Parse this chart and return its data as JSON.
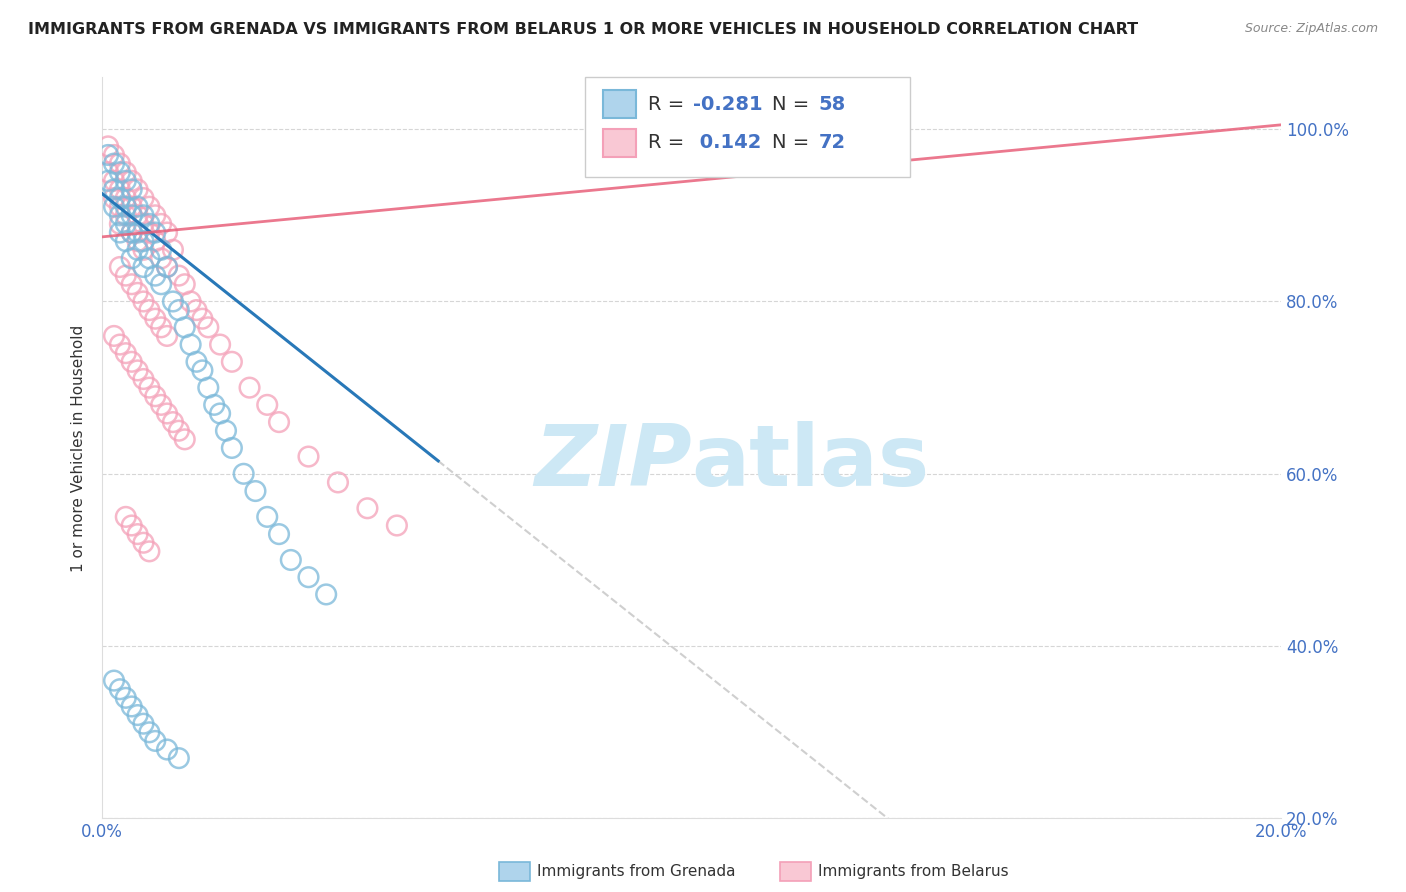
{
  "title": "IMMIGRANTS FROM GRENADA VS IMMIGRANTS FROM BELARUS 1 OR MORE VEHICLES IN HOUSEHOLD CORRELATION CHART",
  "source": "Source: ZipAtlas.com",
  "ylabel": "1 or more Vehicles in Household",
  "xlim": [
    0.0,
    0.2
  ],
  "ylim": [
    0.2,
    1.06
  ],
  "xtick_positions": [
    0.0,
    0.02,
    0.04,
    0.06,
    0.08,
    0.1,
    0.12,
    0.14,
    0.16,
    0.18,
    0.2
  ],
  "ytick_positions": [
    0.2,
    0.4,
    0.6,
    0.8,
    1.0
  ],
  "background_color": "#ffffff",
  "grid_color": "#cccccc",
  "watermark_color": "#cde8f5",
  "grenada_color": "#7ab8d9",
  "belarus_color": "#f4a0b8",
  "grenada_trend_color": "#2878b8",
  "belarus_trend_color": "#e8607a",
  "dash_color": "#bbbbbb",
  "tick_color": "#4472c4",
  "grenada_R": -0.281,
  "grenada_N": 58,
  "belarus_R": 0.142,
  "belarus_N": 72,
  "grenada_x": [
    0.001,
    0.001,
    0.002,
    0.002,
    0.002,
    0.003,
    0.003,
    0.003,
    0.003,
    0.004,
    0.004,
    0.004,
    0.004,
    0.005,
    0.005,
    0.005,
    0.005,
    0.006,
    0.006,
    0.006,
    0.007,
    0.007,
    0.007,
    0.008,
    0.008,
    0.009,
    0.009,
    0.01,
    0.01,
    0.011,
    0.012,
    0.013,
    0.014,
    0.015,
    0.016,
    0.017,
    0.018,
    0.019,
    0.02,
    0.021,
    0.022,
    0.024,
    0.026,
    0.028,
    0.03,
    0.032,
    0.035,
    0.038,
    0.002,
    0.003,
    0.004,
    0.005,
    0.006,
    0.007,
    0.008,
    0.009,
    0.011,
    0.013
  ],
  "grenada_y": [
    0.97,
    0.94,
    0.96,
    0.93,
    0.91,
    0.95,
    0.92,
    0.9,
    0.88,
    0.94,
    0.91,
    0.89,
    0.87,
    0.93,
    0.9,
    0.88,
    0.85,
    0.91,
    0.88,
    0.86,
    0.9,
    0.87,
    0.84,
    0.89,
    0.85,
    0.88,
    0.83,
    0.86,
    0.82,
    0.84,
    0.8,
    0.79,
    0.77,
    0.75,
    0.73,
    0.72,
    0.7,
    0.68,
    0.67,
    0.65,
    0.63,
    0.6,
    0.58,
    0.55,
    0.53,
    0.5,
    0.48,
    0.46,
    0.36,
    0.35,
    0.34,
    0.33,
    0.32,
    0.31,
    0.3,
    0.29,
    0.28,
    0.27
  ],
  "belarus_x": [
    0.001,
    0.001,
    0.002,
    0.002,
    0.002,
    0.003,
    0.003,
    0.003,
    0.003,
    0.004,
    0.004,
    0.004,
    0.005,
    0.005,
    0.005,
    0.006,
    0.006,
    0.006,
    0.007,
    0.007,
    0.007,
    0.008,
    0.008,
    0.009,
    0.009,
    0.01,
    0.01,
    0.011,
    0.011,
    0.012,
    0.013,
    0.014,
    0.015,
    0.016,
    0.017,
    0.018,
    0.02,
    0.022,
    0.025,
    0.028,
    0.03,
    0.035,
    0.04,
    0.045,
    0.05,
    0.002,
    0.003,
    0.004,
    0.005,
    0.006,
    0.007,
    0.008,
    0.009,
    0.01,
    0.011,
    0.012,
    0.013,
    0.014,
    0.004,
    0.005,
    0.006,
    0.007,
    0.008,
    0.003,
    0.004,
    0.005,
    0.006,
    0.007,
    0.008,
    0.009,
    0.01,
    0.011
  ],
  "belarus_y": [
    0.98,
    0.95,
    0.97,
    0.94,
    0.92,
    0.96,
    0.93,
    0.91,
    0.89,
    0.95,
    0.92,
    0.9,
    0.94,
    0.91,
    0.88,
    0.93,
    0.9,
    0.87,
    0.92,
    0.89,
    0.86,
    0.91,
    0.88,
    0.9,
    0.87,
    0.89,
    0.85,
    0.88,
    0.84,
    0.86,
    0.83,
    0.82,
    0.8,
    0.79,
    0.78,
    0.77,
    0.75,
    0.73,
    0.7,
    0.68,
    0.66,
    0.62,
    0.59,
    0.56,
    0.54,
    0.76,
    0.75,
    0.74,
    0.73,
    0.72,
    0.71,
    0.7,
    0.69,
    0.68,
    0.67,
    0.66,
    0.65,
    0.64,
    0.55,
    0.54,
    0.53,
    0.52,
    0.51,
    0.84,
    0.83,
    0.82,
    0.81,
    0.8,
    0.79,
    0.78,
    0.77,
    0.76
  ]
}
